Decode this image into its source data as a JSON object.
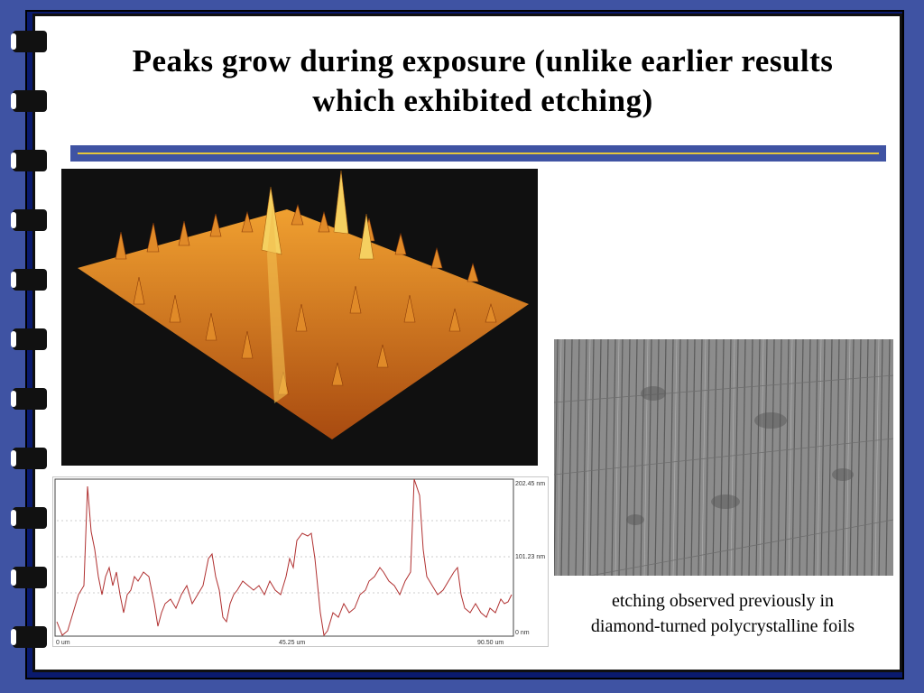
{
  "slide": {
    "title": "Peaks grow during exposure (unlike earlier results which exhibited etching)",
    "caption": "etching observed previously in diamond-turned polycrystalline foils"
  },
  "profile_chart": {
    "y_ticks": [
      "202.45 nm",
      "101.23 nm",
      "0 nm"
    ],
    "x_ticks": [
      "0 um",
      "45.25 um",
      "90.50 um"
    ],
    "line_color": "#b03030"
  },
  "colors": {
    "background": "#3f53a3",
    "gold_line": "#e6c63a",
    "afm_surface": "#d07020"
  },
  "images": {
    "surface_3d": "3D AFM surface rendering",
    "sem_micrograph": "etched foil micrograph"
  }
}
